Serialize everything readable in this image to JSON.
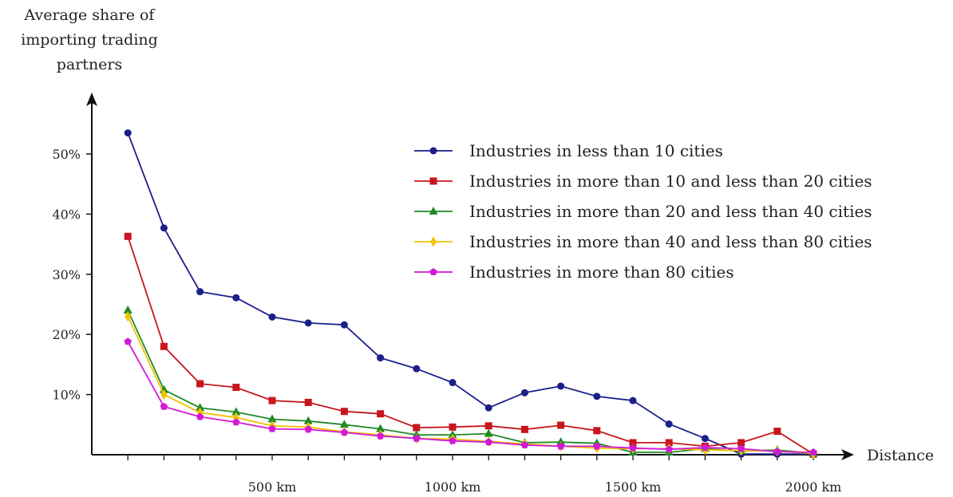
{
  "chart_data": {
    "type": "line",
    "ylabel_lines": [
      "Average share of",
      "importing trading",
      "partners"
    ],
    "xlabel": "Distance",
    "xlim": [
      0,
      2100
    ],
    "ylim": [
      0,
      57
    ],
    "y_ticks": [
      {
        "value": 10,
        "label": "10%"
      },
      {
        "value": 20,
        "label": "20%"
      },
      {
        "value": 30,
        "label": "30%"
      },
      {
        "value": 40,
        "label": "40%"
      },
      {
        "value": 50,
        "label": "50%"
      }
    ],
    "x_tick_marks": [
      100,
      200,
      300,
      400,
      500,
      600,
      700,
      800,
      900,
      1000,
      1100,
      1200,
      1300,
      1400,
      1500,
      1600,
      1700,
      1800,
      1900,
      2000
    ],
    "x_tick_labels": [
      {
        "value": 500,
        "label": "500 km"
      },
      {
        "value": 1000,
        "label": "1000 km"
      },
      {
        "value": 1500,
        "label": "1500 km"
      },
      {
        "value": 2000,
        "label": "2000 km"
      }
    ],
    "x": [
      100,
      200,
      300,
      400,
      500,
      600,
      700,
      800,
      900,
      1000,
      1100,
      1200,
      1300,
      1400,
      1500,
      1600,
      1700,
      1800,
      1900,
      2000
    ],
    "legend_position": "top-right",
    "series": [
      {
        "name": "Industries in less than 10 cities",
        "color": "#1a1f8a",
        "marker": "circle",
        "values": [
          53.5,
          37.7,
          27.1,
          26.1,
          22.9,
          21.9,
          21.6,
          16.1,
          14.3,
          12.0,
          7.8,
          10.3,
          11.4,
          9.7,
          9.0,
          5.1,
          2.7,
          0.1,
          0.1,
          0.1
        ]
      },
      {
        "name": "Industries in more than 10 and less than 20 cities",
        "color": "#c8161d",
        "marker": "square",
        "values": [
          36.3,
          18.0,
          11.8,
          11.2,
          9.0,
          8.7,
          7.2,
          6.8,
          4.5,
          4.6,
          4.8,
          4.2,
          4.9,
          4.0,
          2.0,
          2.0,
          1.4,
          2.0,
          3.9,
          0.1
        ]
      },
      {
        "name": "Industries in more than 20 and less than 40 cities",
        "color": "#1f8a25",
        "marker": "triangle",
        "values": [
          24.0,
          10.8,
          7.8,
          7.1,
          5.9,
          5.6,
          5.0,
          4.3,
          3.3,
          3.3,
          3.5,
          2.0,
          2.1,
          1.9,
          0.4,
          0.4,
          1.0,
          0.6,
          0.8,
          0.2
        ]
      },
      {
        "name": "Industries in more than 40 and less than 80 cities",
        "color": "#f2c200",
        "marker": "diamond",
        "values": [
          23.0,
          10.0,
          7.0,
          6.2,
          4.8,
          4.6,
          3.8,
          3.3,
          2.7,
          2.6,
          2.2,
          1.8,
          1.4,
          1.1,
          1.0,
          1.0,
          0.8,
          0.7,
          0.6,
          0.2
        ]
      },
      {
        "name": "Industries in more than 80 cities",
        "color": "#d21ad6",
        "marker": "pentagon",
        "values": [
          18.8,
          8.0,
          6.3,
          5.4,
          4.3,
          4.2,
          3.7,
          3.1,
          2.7,
          2.3,
          2.1,
          1.6,
          1.4,
          1.4,
          1.1,
          0.9,
          1.2,
          1.0,
          0.5,
          0.4
        ]
      }
    ]
  }
}
